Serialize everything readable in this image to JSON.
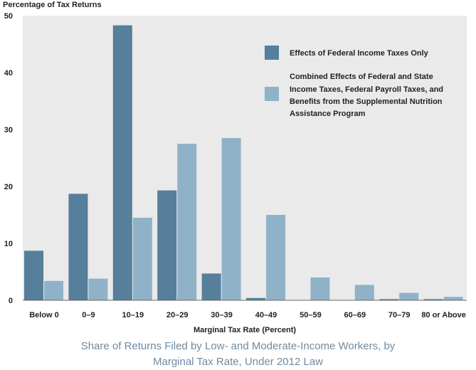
{
  "chart_data": {
    "type": "bar",
    "ylabel": "Percentage of Tax Returns",
    "xlabel": "Marginal Tax Rate (Percent)",
    "categories": [
      "Below 0",
      "0–9",
      "10–19",
      "20–29",
      "30–39",
      "40–49",
      "50–59",
      "60–69",
      "70–79",
      "80 or Above"
    ],
    "series": [
      {
        "name": "Effects of Federal Income Taxes Only",
        "color": "#557f9b",
        "values": [
          8.7,
          18.7,
          48.3,
          19.3,
          4.7,
          0.4,
          0,
          0,
          0.2,
          0.2
        ]
      },
      {
        "name": "Combined Effects of Federal and State Income Taxes, Federal Payroll Taxes, and Benefits from the Supplemental Nutrition Assistance Program",
        "color": "#90b2c9",
        "values": [
          3.4,
          3.8,
          14.5,
          27.5,
          28.5,
          15.0,
          4.0,
          2.7,
          1.3,
          0.6
        ]
      }
    ],
    "ylim": [
      0,
      50
    ],
    "yticks": [
      0,
      10,
      20,
      30,
      40,
      50
    ],
    "grid": false,
    "legend_position": "top-right"
  },
  "legend": {
    "item1": "Effects of Federal Income Taxes Only",
    "item2_lines": [
      "Combined Effects of Federal and State",
      "Income Taxes, Federal Payroll Taxes, and",
      "Benefits from the Supplemental Nutrition",
      "Assistance Program"
    ]
  },
  "caption": {
    "line1": "Share of Returns Filed by Low- and Moderate-Income Workers, by",
    "line2": "Marginal Tax Rate, Under 2012 Law"
  }
}
